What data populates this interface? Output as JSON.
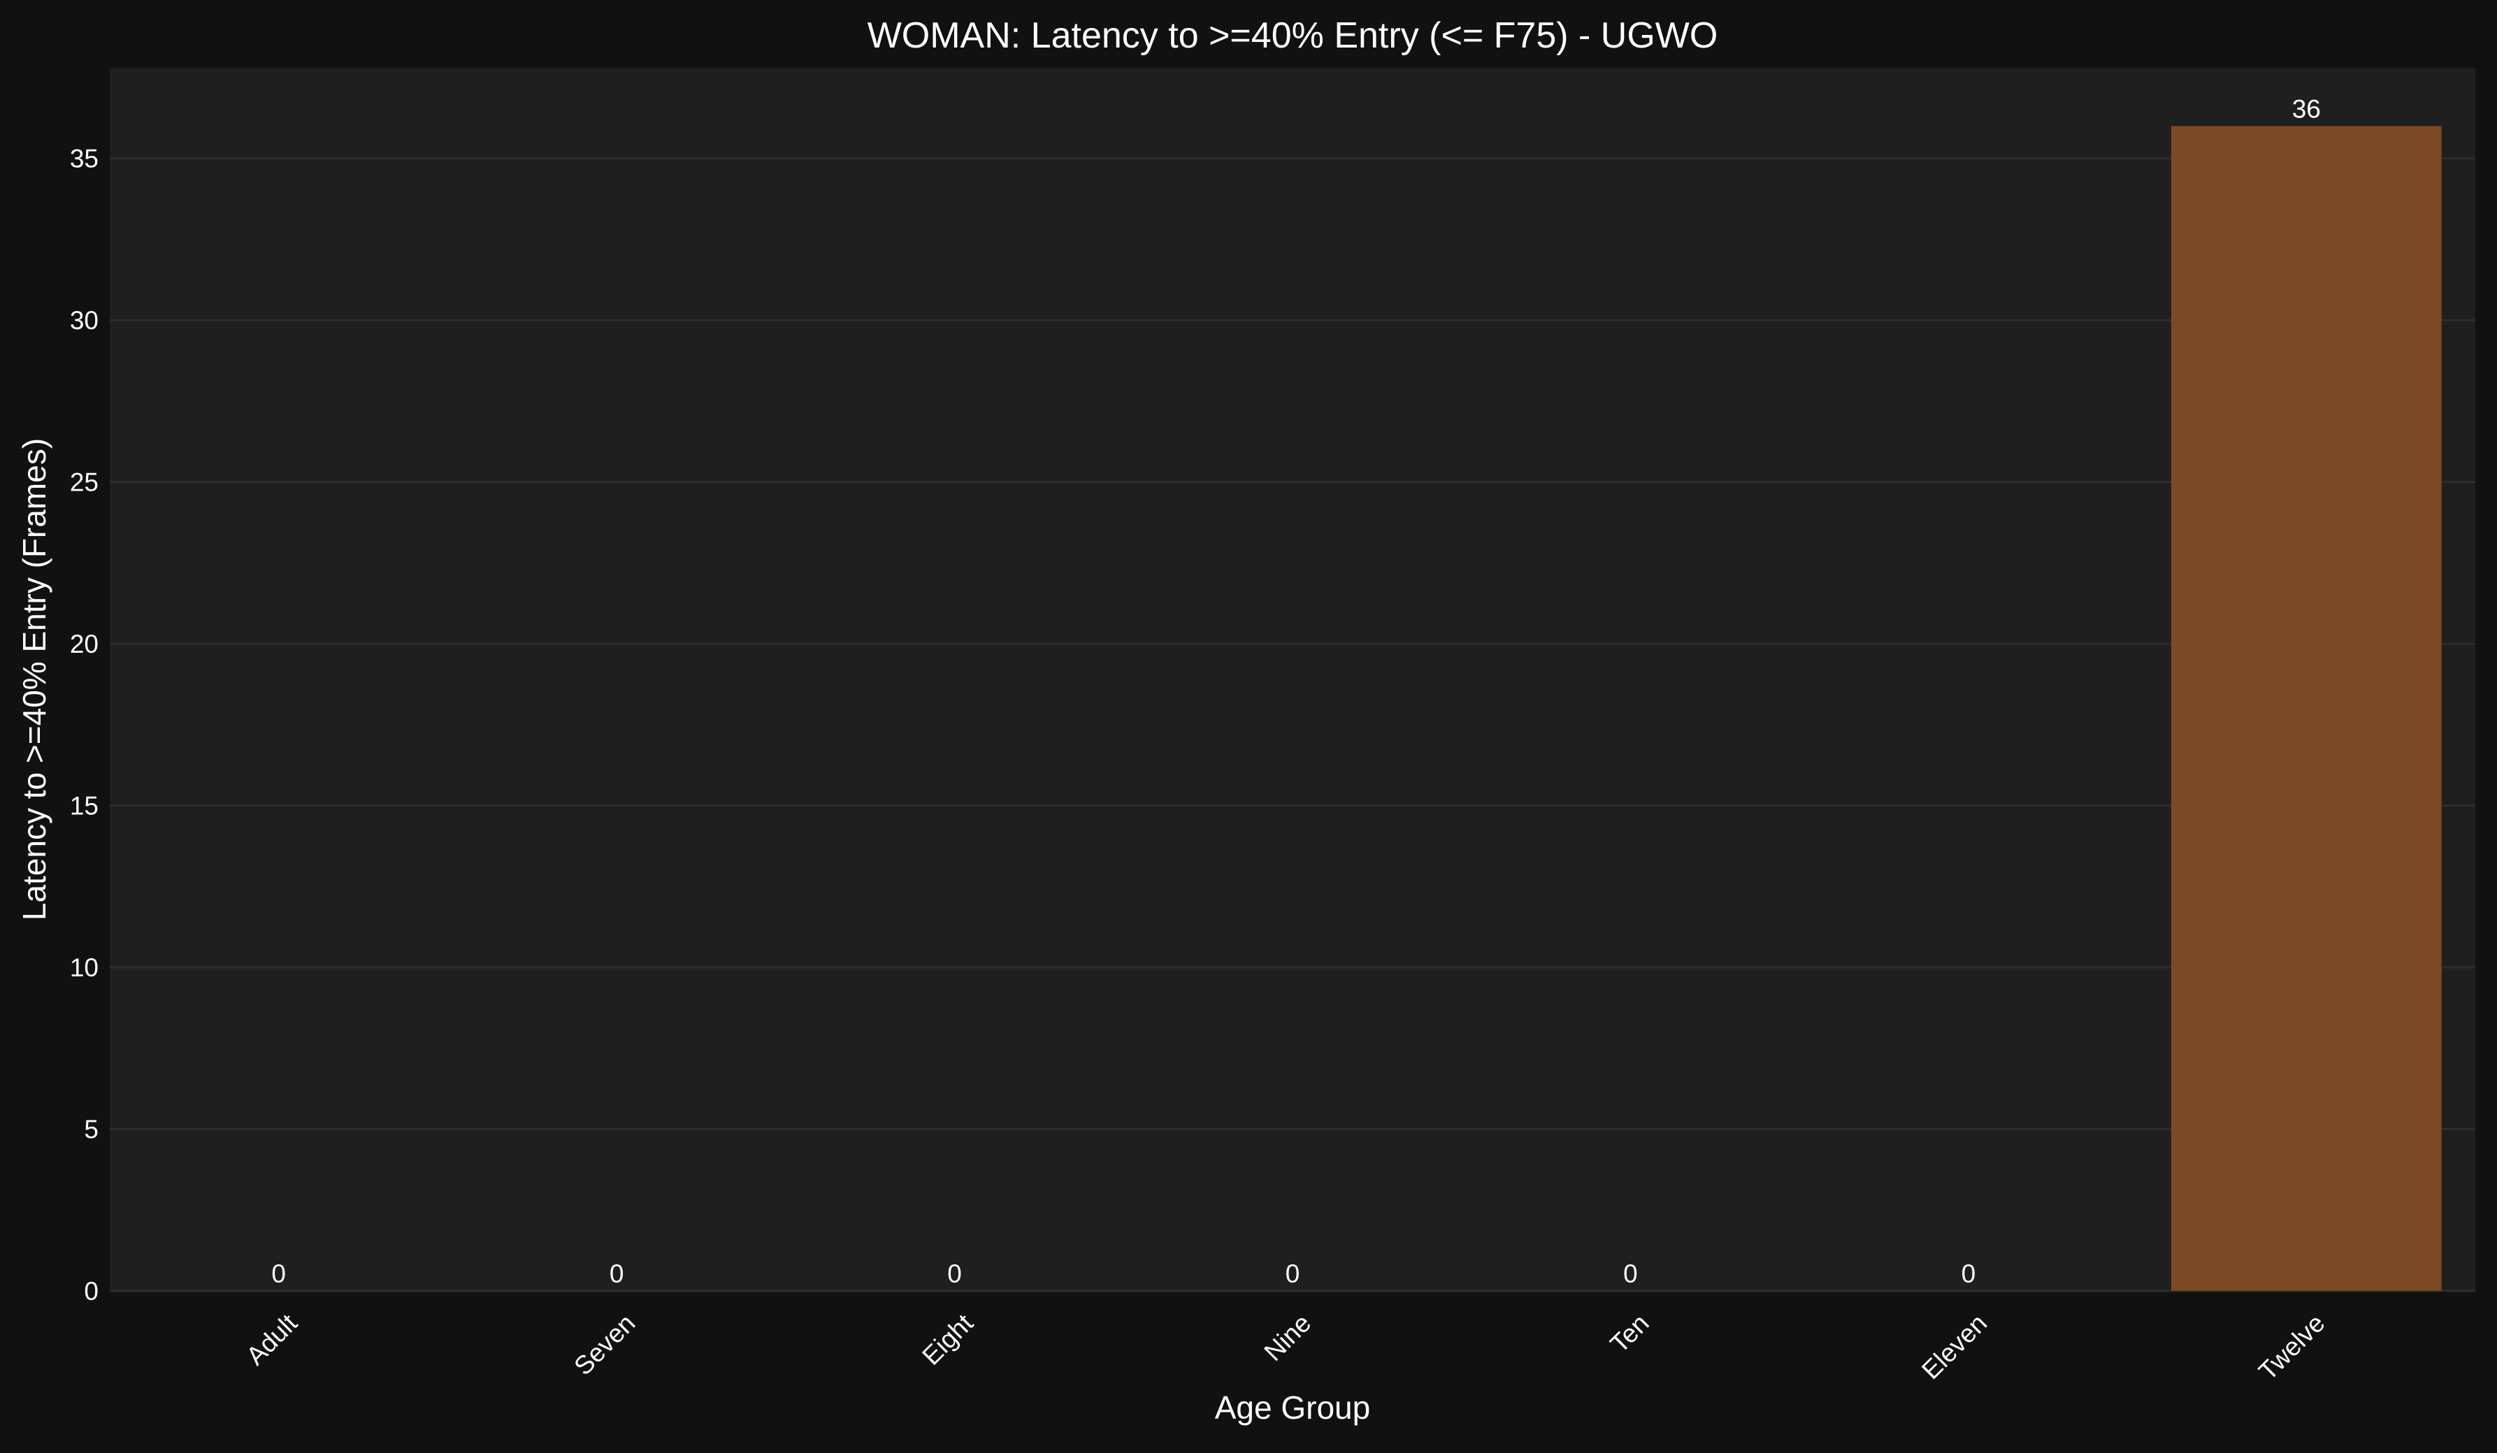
{
  "colors": {
    "figure_background": "#111111",
    "plot_background": "#1f1f1f",
    "grid": "#2d2d2d",
    "text": "#ffffff",
    "bar": "#7c4924"
  },
  "chart_data": {
    "type": "bar",
    "title": "WOMAN: Latency to >=40% Entry (<= F75) - UGWO",
    "xlabel": "Age Group",
    "ylabel": "Latency to >=40% Entry (Frames)",
    "categories": [
      "Adult",
      "Seven",
      "Eight",
      "Nine",
      "Ten",
      "Eleven",
      "Twelve"
    ],
    "values": [
      0,
      0,
      0,
      0,
      0,
      0,
      36
    ],
    "data_labels": [
      "0",
      "0",
      "0",
      "0",
      "0",
      "0",
      "36"
    ],
    "ylim": [
      0,
      37.8
    ],
    "yticks": [
      0,
      5,
      10,
      15,
      20,
      25,
      30,
      35
    ],
    "ytick_labels": [
      "0",
      "5",
      "10",
      "15",
      "20",
      "25",
      "30",
      "35"
    ],
    "grid": true,
    "legend": "none"
  }
}
